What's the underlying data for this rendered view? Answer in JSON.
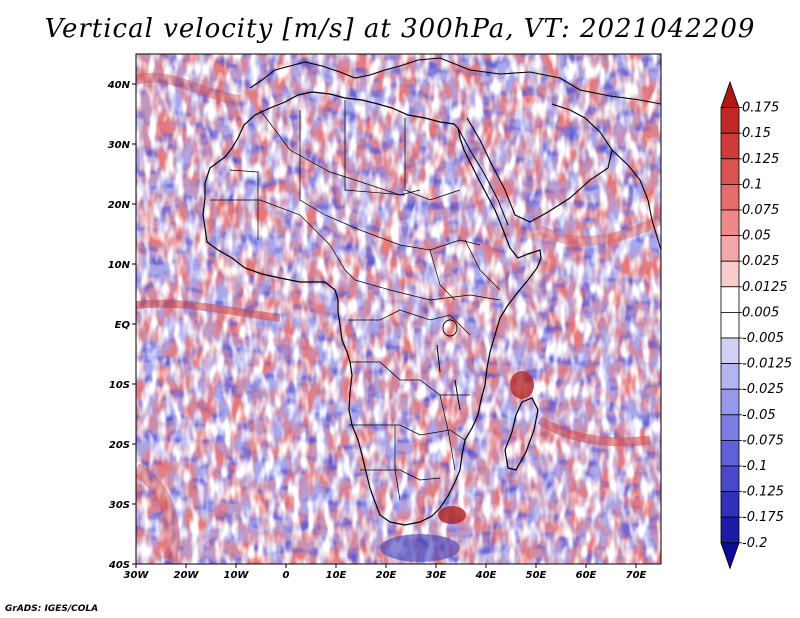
{
  "title": "Vertical velocity [m/s] at 300hPa, VT: 2021042209",
  "footer": "GrADS: IGES/COLA",
  "map": {
    "region": "Africa and surrounding oceans",
    "lon_range": [
      -30,
      75
    ],
    "lat_range": [
      -40,
      45
    ],
    "lat_ticks": [
      {
        "lat": 40,
        "label": "40N"
      },
      {
        "lat": 30,
        "label": "30N"
      },
      {
        "lat": 20,
        "label": "20N"
      },
      {
        "lat": 10,
        "label": "10N"
      },
      {
        "lat": 0,
        "label": "EQ"
      },
      {
        "lat": -10,
        "label": "10S"
      },
      {
        "lat": -20,
        "label": "20S"
      },
      {
        "lat": -30,
        "label": "30S"
      },
      {
        "lat": -40,
        "label": "40S"
      }
    ],
    "lon_ticks": [
      {
        "lon": -30,
        "label": "30W"
      },
      {
        "lon": -20,
        "label": "20W"
      },
      {
        "lon": -10,
        "label": "10W"
      },
      {
        "lon": 0,
        "label": "0"
      },
      {
        "lon": 10,
        "label": "10E"
      },
      {
        "lon": 20,
        "label": "20E"
      },
      {
        "lon": 30,
        "label": "30E"
      },
      {
        "lon": 40,
        "label": "40E"
      },
      {
        "lon": 50,
        "label": "50E"
      },
      {
        "lon": 60,
        "label": "60E"
      },
      {
        "lon": 70,
        "label": "70E"
      }
    ]
  },
  "colorbar": {
    "labels": [
      "0.175",
      "0.15",
      "0.125",
      "0.1",
      "0.075",
      "0.05",
      "0.025",
      "0.0125",
      "0.005",
      "-0.005",
      "-0.0125",
      "-0.025",
      "-0.05",
      "-0.075",
      "-0.1",
      "-0.125",
      "-0.175",
      "-0.2"
    ],
    "colors": [
      "#b01818",
      "#c02828",
      "#d03a3a",
      "#dc5252",
      "#e46c6c",
      "#ec8a8a",
      "#f2a8a8",
      "#f8cccc",
      "#ffffff",
      "#ffffff",
      "#d0d0f6",
      "#b4b4f0",
      "#9898ea",
      "#7c7ce2",
      "#6060d8",
      "#4848c8",
      "#3030b8",
      "#1c1ca8",
      "#0c0c96"
    ]
  }
}
